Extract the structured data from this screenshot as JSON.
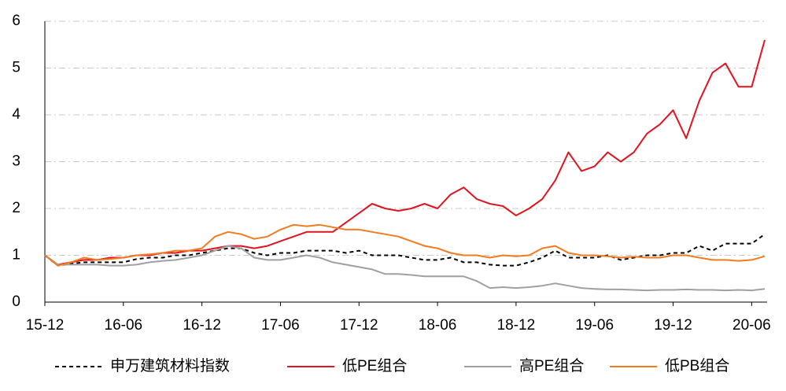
{
  "chart_data": {
    "type": "line",
    "categories": [
      "15-12",
      null,
      null,
      null,
      null,
      null,
      "16-06",
      null,
      null,
      null,
      null,
      null,
      "16-12",
      null,
      null,
      null,
      null,
      null,
      "17-06",
      null,
      null,
      null,
      null,
      null,
      "17-12",
      null,
      null,
      null,
      null,
      null,
      "18-06",
      null,
      null,
      null,
      null,
      null,
      "18-12",
      null,
      null,
      null,
      null,
      null,
      "19-06",
      null,
      null,
      null,
      null,
      null,
      "19-12",
      null,
      null,
      null,
      null,
      null,
      "20-06",
      null
    ],
    "ylim": [
      0,
      6
    ],
    "yticks": [
      0,
      1,
      2,
      3,
      4,
      5,
      6
    ],
    "grid": true,
    "legend": "bottom",
    "series": [
      {
        "name": "申万建筑材料指数",
        "color": "#000000",
        "dash": true,
        "values": [
          1.0,
          0.78,
          0.82,
          0.85,
          0.85,
          0.85,
          0.85,
          0.92,
          0.95,
          0.95,
          1.0,
          1.0,
          1.05,
          1.1,
          1.15,
          1.15,
          1.05,
          1.0,
          1.05,
          1.05,
          1.1,
          1.1,
          1.1,
          1.05,
          1.1,
          1.0,
          1.0,
          1.0,
          0.95,
          0.9,
          0.9,
          0.95,
          0.85,
          0.85,
          0.8,
          0.78,
          0.78,
          0.85,
          0.95,
          1.1,
          0.95,
          0.95,
          0.95,
          1.0,
          0.9,
          0.95,
          1.0,
          1.0,
          1.05,
          1.05,
          1.2,
          1.1,
          1.25,
          1.25,
          1.25,
          1.45
        ]
      },
      {
        "name": "低PE组合",
        "color": "#e0141e",
        "dash": false,
        "values": [
          1.0,
          0.8,
          0.85,
          0.9,
          0.9,
          0.95,
          0.95,
          1.0,
          1.0,
          1.05,
          1.05,
          1.1,
          1.1,
          1.15,
          1.2,
          1.2,
          1.15,
          1.2,
          1.3,
          1.4,
          1.5,
          1.5,
          1.5,
          1.7,
          1.9,
          2.1,
          2.0,
          1.95,
          2.0,
          2.1,
          2.0,
          2.3,
          2.45,
          2.2,
          2.1,
          2.05,
          1.85,
          2.0,
          2.2,
          2.6,
          3.2,
          2.8,
          2.9,
          3.2,
          3.0,
          3.2,
          3.6,
          3.8,
          4.1,
          3.5,
          4.3,
          4.9,
          5.1,
          4.6,
          4.6,
          5.6
        ]
      },
      {
        "name": "高PE组合",
        "color": "#a0a0a0",
        "dash": false,
        "values": [
          1.0,
          0.8,
          0.8,
          0.8,
          0.8,
          0.78,
          0.78,
          0.8,
          0.85,
          0.88,
          0.9,
          0.95,
          1.0,
          1.1,
          1.2,
          1.15,
          0.95,
          0.9,
          0.9,
          0.95,
          1.0,
          0.95,
          0.85,
          0.8,
          0.75,
          0.7,
          0.6,
          0.6,
          0.58,
          0.55,
          0.55,
          0.55,
          0.55,
          0.45,
          0.3,
          0.32,
          0.3,
          0.32,
          0.35,
          0.4,
          0.35,
          0.3,
          0.28,
          0.27,
          0.27,
          0.26,
          0.25,
          0.26,
          0.26,
          0.27,
          0.26,
          0.26,
          0.25,
          0.26,
          0.25,
          0.28
        ]
      },
      {
        "name": "低PB组合",
        "color": "#f47a20",
        "dash": false,
        "values": [
          1.0,
          0.78,
          0.85,
          0.95,
          0.9,
          0.92,
          0.95,
          1.0,
          1.02,
          1.05,
          1.1,
          1.1,
          1.15,
          1.4,
          1.5,
          1.45,
          1.35,
          1.4,
          1.55,
          1.65,
          1.62,
          1.65,
          1.6,
          1.55,
          1.55,
          1.5,
          1.45,
          1.4,
          1.3,
          1.2,
          1.15,
          1.05,
          1.0,
          1.0,
          0.95,
          1.0,
          0.98,
          1.0,
          1.15,
          1.2,
          1.05,
          1.0,
          1.0,
          0.98,
          0.95,
          0.97,
          0.95,
          0.95,
          1.0,
          1.0,
          0.95,
          0.9,
          0.9,
          0.88,
          0.9,
          0.98
        ]
      }
    ]
  }
}
